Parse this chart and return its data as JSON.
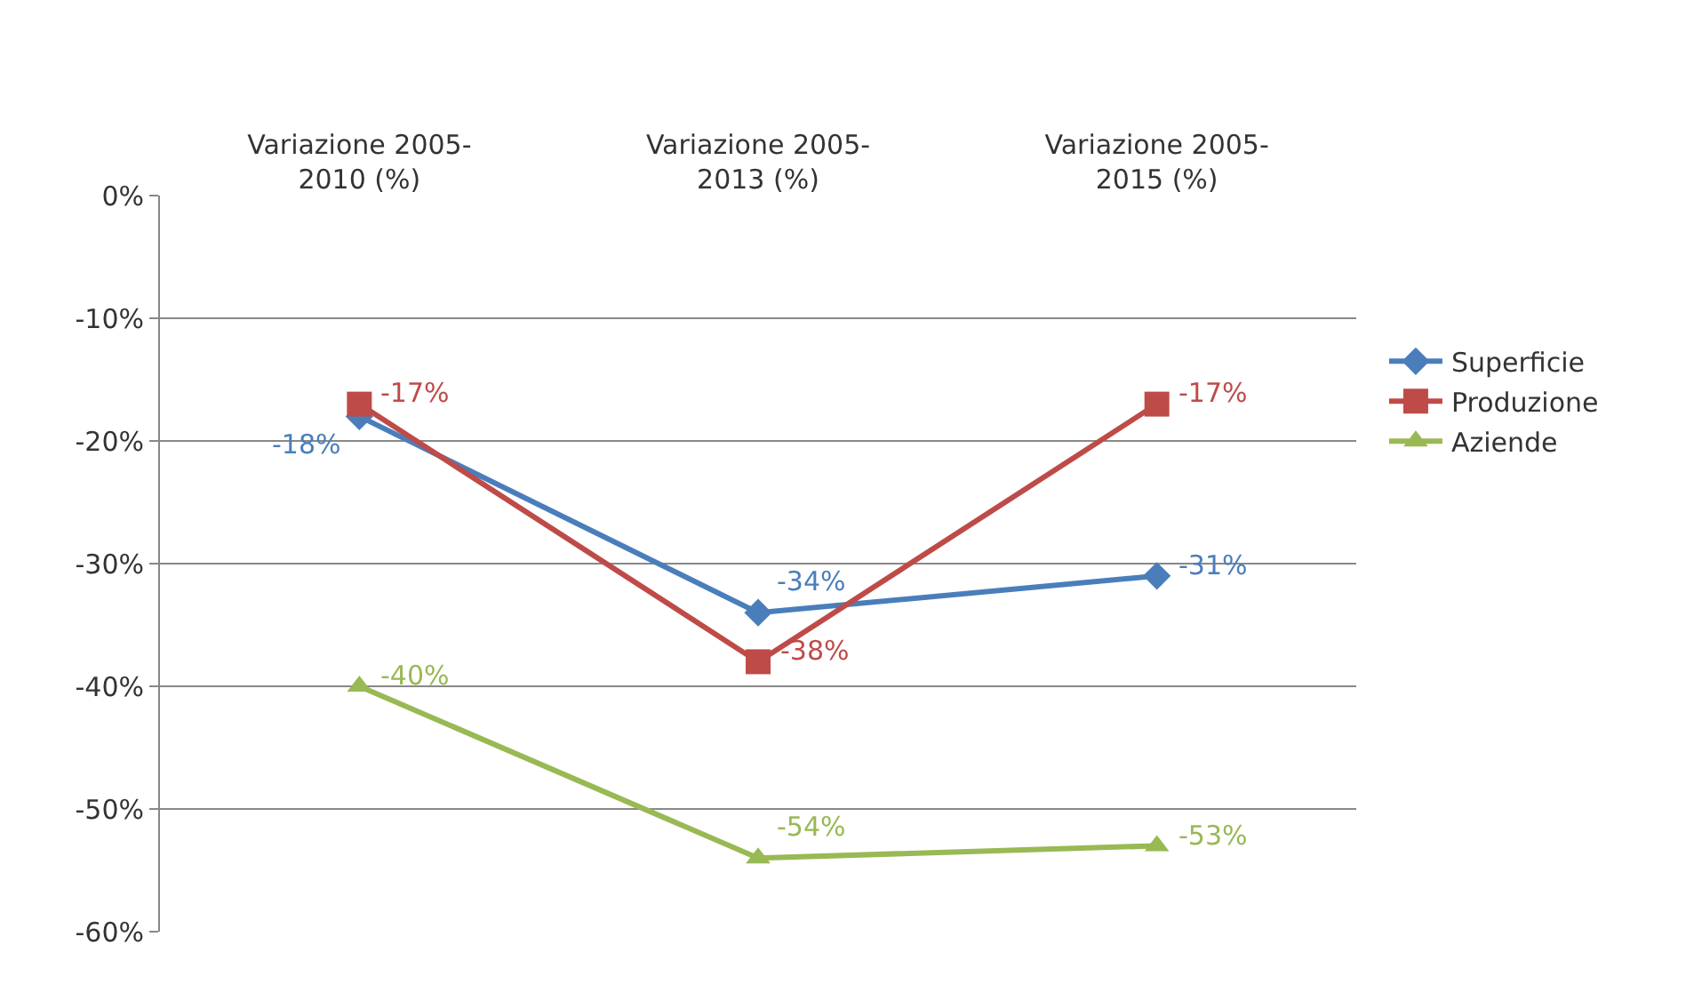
{
  "chart_data": {
    "type": "line",
    "categories": [
      "Variazione 2005-\n2010 (%)",
      "Variazione 2005-\n2013 (%)",
      "Variazione 2005-\n2015 (%)"
    ],
    "series": [
      {
        "name": "Superficie",
        "color": "#4a7ebb",
        "marker": "diamond",
        "values": [
          -18,
          -34,
          -31
        ],
        "value_labels": [
          "-18%",
          "-34%",
          "-31%"
        ]
      },
      {
        "name": "Produzione",
        "color": "#be4b48",
        "marker": "square",
        "values": [
          -17,
          -38,
          -17
        ],
        "value_labels": [
          "-17%",
          "-38%",
          "-17%"
        ]
      },
      {
        "name": "Aziende",
        "color": "#98b954",
        "marker": "triangle",
        "values": [
          -40,
          -54,
          -53
        ],
        "value_labels": [
          "-40%",
          "-54%",
          "-53%"
        ]
      }
    ],
    "ylim": [
      -60,
      0
    ],
    "yticks": [
      {
        "value": 0,
        "label": "0%"
      },
      {
        "value": -10,
        "label": "-10%"
      },
      {
        "value": -20,
        "label": "-20%"
      },
      {
        "value": -30,
        "label": "-30%"
      },
      {
        "value": -40,
        "label": "-40%"
      },
      {
        "value": -50,
        "label": "-50%"
      },
      {
        "value": -60,
        "label": "-60%"
      }
    ],
    "grid": "y",
    "legend": "right",
    "line_style": "solid"
  }
}
